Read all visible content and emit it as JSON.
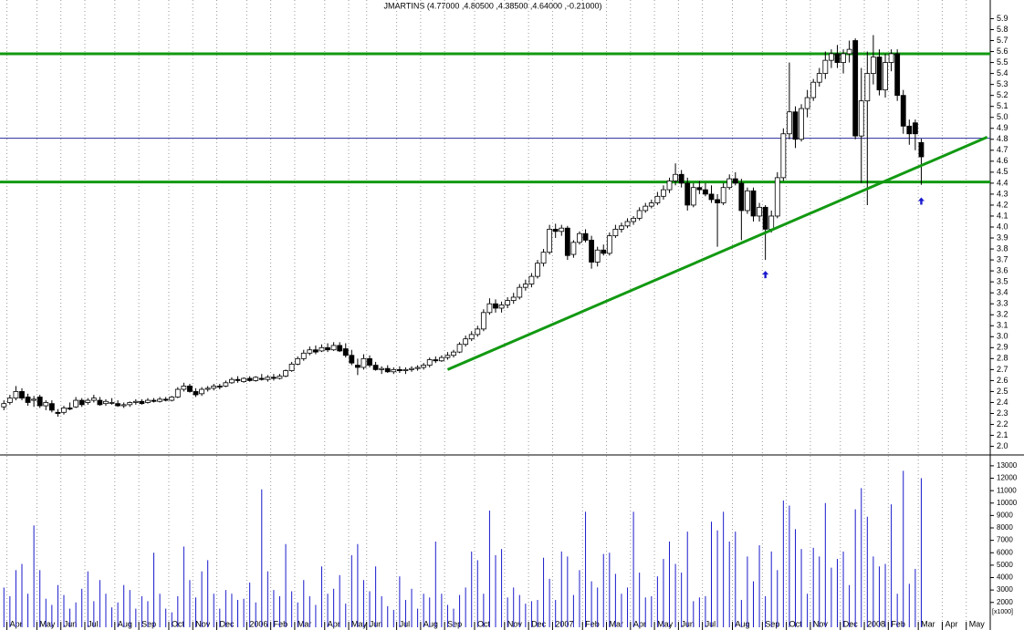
{
  "chart_data": {
    "type": "candlestick",
    "title": "JMARTINS (4.77000 ,4.80500 ,4.38500 ,4.64000 ,-0.21000)",
    "categories": [
      null,
      "Apr",
      null,
      null,
      null,
      null,
      "May",
      null,
      null,
      null,
      "Jun",
      null,
      null,
      null,
      "Jul",
      null,
      null,
      null,
      null,
      "Aug",
      null,
      null,
      null,
      "Sep",
      null,
      null,
      null,
      null,
      "Oct",
      null,
      null,
      null,
      "Nov",
      null,
      null,
      null,
      "Dec",
      null,
      null,
      null,
      null,
      "2006",
      null,
      null,
      null,
      "Feb",
      null,
      null,
      null,
      "Mar",
      null,
      null,
      null,
      null,
      "Apr",
      null,
      null,
      null,
      "May",
      null,
      null,
      "Jun",
      null,
      null,
      null,
      null,
      "Jul",
      null,
      null,
      null,
      "Aug",
      null,
      null,
      null,
      "Sep",
      null,
      null,
      null,
      null,
      "Oct",
      null,
      null,
      null,
      null,
      "Nov",
      null,
      null,
      null,
      "Dec",
      null,
      null,
      null,
      "2007",
      null,
      null,
      null,
      null,
      "Feb",
      null,
      null,
      null,
      "Mar",
      null,
      null,
      null,
      "Apr",
      null,
      null,
      null,
      "May",
      null,
      null,
      null,
      "Jun",
      null,
      null,
      null,
      "Jul",
      null,
      null,
      null,
      null,
      "Aug",
      null,
      null,
      null,
      null,
      "Sep",
      null,
      null,
      null,
      "Oct",
      null,
      null,
      null,
      "Nov",
      null,
      null,
      null,
      null,
      "Dec",
      null,
      null,
      null,
      "2008",
      null,
      null,
      null,
      "Feb",
      null,
      null,
      null,
      null,
      "Mar",
      null,
      null,
      null,
      "Apr",
      null,
      null,
      null,
      "May",
      null,
      null,
      null
    ],
    "ohlc": [
      [
        2.36,
        2.42,
        2.33,
        2.39
      ],
      [
        2.4,
        2.47,
        2.38,
        2.44
      ],
      [
        2.44,
        2.55,
        2.42,
        2.5
      ],
      [
        2.5,
        2.53,
        2.42,
        2.44
      ],
      [
        2.45,
        2.48,
        2.37,
        2.4
      ],
      [
        2.42,
        2.46,
        2.36,
        2.43
      ],
      [
        2.45,
        2.47,
        2.35,
        2.37
      ],
      [
        2.37,
        2.42,
        2.33,
        2.4
      ],
      [
        2.39,
        2.42,
        2.31,
        2.33
      ],
      [
        2.31,
        2.34,
        2.27,
        2.3
      ],
      [
        2.31,
        2.37,
        2.29,
        2.35
      ],
      [
        2.35,
        2.4,
        2.33,
        2.34
      ],
      [
        2.36,
        2.45,
        2.35,
        2.42
      ],
      [
        2.42,
        2.44,
        2.36,
        2.38
      ],
      [
        2.4,
        2.44,
        2.38,
        2.42
      ],
      [
        2.42,
        2.47,
        2.4,
        2.44
      ],
      [
        2.42,
        2.45,
        2.37,
        2.38
      ],
      [
        2.39,
        2.43,
        2.37,
        2.41
      ],
      [
        2.4,
        2.44,
        2.38,
        2.4
      ],
      [
        2.39,
        2.42,
        2.36,
        2.37
      ],
      [
        2.37,
        2.4,
        2.35,
        2.38
      ],
      [
        2.38,
        2.41,
        2.36,
        2.4
      ],
      [
        2.4,
        2.43,
        2.38,
        2.41
      ],
      [
        2.41,
        2.43,
        2.38,
        2.39
      ],
      [
        2.4,
        2.44,
        2.39,
        2.42
      ],
      [
        2.42,
        2.44,
        2.4,
        2.41
      ],
      [
        2.41,
        2.45,
        2.4,
        2.43
      ],
      [
        2.43,
        2.45,
        2.41,
        2.42
      ],
      [
        2.42,
        2.46,
        2.41,
        2.45
      ],
      [
        2.45,
        2.54,
        2.44,
        2.52
      ],
      [
        2.52,
        2.58,
        2.5,
        2.55
      ],
      [
        2.55,
        2.57,
        2.49,
        2.5
      ],
      [
        2.5,
        2.53,
        2.45,
        2.47
      ],
      [
        2.48,
        2.54,
        2.46,
        2.52
      ],
      [
        2.52,
        2.55,
        2.5,
        2.53
      ],
      [
        2.53,
        2.57,
        2.51,
        2.55
      ],
      [
        2.55,
        2.57,
        2.52,
        2.54
      ],
      [
        2.55,
        2.6,
        2.54,
        2.58
      ],
      [
        2.58,
        2.63,
        2.57,
        2.61
      ],
      [
        2.61,
        2.64,
        2.58,
        2.6
      ],
      [
        2.59,
        2.63,
        2.58,
        2.62
      ],
      [
        2.62,
        2.64,
        2.59,
        2.6
      ],
      [
        2.6,
        2.64,
        2.59,
        2.63
      ],
      [
        2.62,
        2.66,
        2.6,
        2.61
      ],
      [
        2.61,
        2.65,
        2.59,
        2.63
      ],
      [
        2.63,
        2.66,
        2.6,
        2.62
      ],
      [
        2.62,
        2.66,
        2.61,
        2.64
      ],
      [
        2.64,
        2.7,
        2.63,
        2.69
      ],
      [
        2.69,
        2.77,
        2.68,
        2.75
      ],
      [
        2.75,
        2.82,
        2.74,
        2.8
      ],
      [
        2.8,
        2.88,
        2.78,
        2.85
      ],
      [
        2.85,
        2.91,
        2.83,
        2.88
      ],
      [
        2.88,
        2.92,
        2.84,
        2.86
      ],
      [
        2.87,
        2.93,
        2.86,
        2.9
      ],
      [
        2.9,
        2.94,
        2.86,
        2.88
      ],
      [
        2.88,
        2.95,
        2.87,
        2.92
      ],
      [
        2.92,
        2.95,
        2.86,
        2.87
      ],
      [
        2.89,
        2.94,
        2.81,
        2.83
      ],
      [
        2.83,
        2.88,
        2.74,
        2.76
      ],
      [
        2.74,
        2.8,
        2.65,
        2.72
      ],
      [
        2.72,
        2.84,
        2.7,
        2.8
      ],
      [
        2.8,
        2.83,
        2.72,
        2.74
      ],
      [
        2.74,
        2.77,
        2.69,
        2.7
      ],
      [
        2.7,
        2.73,
        2.66,
        2.71
      ],
      [
        2.71,
        2.74,
        2.67,
        2.68
      ],
      [
        2.68,
        2.72,
        2.66,
        2.7
      ],
      [
        2.7,
        2.73,
        2.67,
        2.69
      ],
      [
        2.69,
        2.72,
        2.66,
        2.7
      ],
      [
        2.7,
        2.73,
        2.68,
        2.71
      ],
      [
        2.71,
        2.74,
        2.69,
        2.72
      ],
      [
        2.72,
        2.76,
        2.7,
        2.74
      ],
      [
        2.74,
        2.81,
        2.72,
        2.79
      ],
      [
        2.79,
        2.82,
        2.76,
        2.78
      ],
      [
        2.78,
        2.83,
        2.77,
        2.81
      ],
      [
        2.81,
        2.86,
        2.79,
        2.83
      ],
      [
        2.83,
        2.88,
        2.81,
        2.86
      ],
      [
        2.86,
        2.95,
        2.85,
        2.93
      ],
      [
        2.93,
        3.01,
        2.91,
        2.98
      ],
      [
        2.98,
        3.05,
        2.96,
        3.02
      ],
      [
        3.02,
        3.1,
        3.0,
        3.07
      ],
      [
        3.07,
        3.25,
        3.05,
        3.22
      ],
      [
        3.22,
        3.35,
        3.2,
        3.3
      ],
      [
        3.3,
        3.34,
        3.22,
        3.26
      ],
      [
        3.26,
        3.32,
        3.22,
        3.29
      ],
      [
        3.29,
        3.36,
        3.26,
        3.33
      ],
      [
        3.33,
        3.4,
        3.3,
        3.36
      ],
      [
        3.36,
        3.48,
        3.34,
        3.45
      ],
      [
        3.45,
        3.52,
        3.42,
        3.48
      ],
      [
        3.48,
        3.58,
        3.45,
        3.55
      ],
      [
        3.55,
        3.7,
        3.53,
        3.67
      ],
      [
        3.67,
        3.8,
        3.64,
        3.77
      ],
      [
        3.77,
        4.02,
        3.75,
        3.98
      ],
      [
        3.98,
        4.03,
        3.9,
        3.96
      ],
      [
        3.96,
        4.02,
        3.92,
        3.99
      ],
      [
        3.99,
        4.01,
        3.7,
        3.74
      ],
      [
        3.75,
        3.88,
        3.72,
        3.86
      ],
      [
        3.86,
        3.96,
        3.84,
        3.94
      ],
      [
        3.94,
        3.98,
        3.86,
        3.88
      ],
      [
        3.88,
        3.92,
        3.62,
        3.68
      ],
      [
        3.68,
        3.82,
        3.64,
        3.79
      ],
      [
        3.79,
        3.84,
        3.74,
        3.76
      ],
      [
        3.76,
        3.95,
        3.74,
        3.92
      ],
      [
        3.92,
        4.02,
        3.9,
        3.98
      ],
      [
        3.98,
        4.04,
        3.95,
        4.01
      ],
      [
        4.01,
        4.08,
        3.99,
        4.05
      ],
      [
        4.05,
        4.1,
        4.02,
        4.08
      ],
      [
        4.08,
        4.18,
        4.06,
        4.15
      ],
      [
        4.15,
        4.22,
        4.13,
        4.19
      ],
      [
        4.19,
        4.25,
        4.17,
        4.22
      ],
      [
        4.22,
        4.32,
        4.2,
        4.28
      ],
      [
        4.28,
        4.38,
        4.25,
        4.34
      ],
      [
        4.34,
        4.45,
        4.31,
        4.42
      ],
      [
        4.42,
        4.58,
        4.38,
        4.48
      ],
      [
        4.48,
        4.52,
        4.36,
        4.4
      ],
      [
        4.4,
        4.45,
        4.15,
        4.2
      ],
      [
        4.2,
        4.4,
        4.18,
        4.36
      ],
      [
        4.36,
        4.42,
        4.3,
        4.34
      ],
      [
        4.34,
        4.4,
        4.28,
        4.3
      ],
      [
        4.3,
        4.38,
        4.22,
        4.25
      ],
      [
        4.25,
        4.3,
        3.82,
        4.22
      ],
      [
        4.22,
        4.4,
        4.2,
        4.36
      ],
      [
        4.36,
        4.48,
        4.34,
        4.44
      ],
      [
        4.44,
        4.5,
        4.38,
        4.4
      ],
      [
        4.4,
        4.44,
        3.88,
        4.15
      ],
      [
        4.15,
        4.36,
        4.12,
        4.33
      ],
      [
        4.33,
        4.36,
        4.05,
        4.1
      ],
      [
        4.1,
        4.22,
        4.05,
        4.18
      ],
      [
        4.18,
        4.2,
        3.7,
        3.98
      ],
      [
        3.98,
        4.15,
        3.95,
        4.1
      ],
      [
        4.1,
        4.5,
        4.08,
        4.45
      ],
      [
        4.45,
        4.9,
        4.42,
        4.85
      ],
      [
        4.85,
        5.5,
        4.8,
        5.05
      ],
      [
        5.05,
        5.1,
        4.72,
        4.8
      ],
      [
        4.8,
        5.12,
        4.78,
        5.08
      ],
      [
        5.08,
        5.25,
        5.0,
        5.18
      ],
      [
        5.18,
        5.35,
        5.15,
        5.32
      ],
      [
        5.32,
        5.45,
        5.28,
        5.4
      ],
      [
        5.4,
        5.6,
        5.35,
        5.52
      ],
      [
        5.52,
        5.62,
        5.45,
        5.58
      ],
      [
        5.58,
        5.66,
        5.45,
        5.5
      ],
      [
        5.5,
        5.62,
        5.4,
        5.58
      ],
      [
        5.58,
        5.7,
        5.5,
        5.62
      ],
      [
        5.7,
        5.72,
        4.8,
        4.83
      ],
      [
        4.83,
        5.45,
        4.4,
        5.15
      ],
      [
        5.15,
        5.6,
        4.2,
        5.4
      ],
      [
        5.4,
        5.75,
        5.3,
        5.55
      ],
      [
        5.55,
        5.62,
        5.2,
        5.25
      ],
      [
        5.25,
        5.58,
        5.18,
        5.5
      ],
      [
        5.5,
        5.62,
        5.42,
        5.58
      ],
      [
        5.58,
        5.62,
        5.15,
        5.2
      ],
      [
        5.2,
        5.25,
        4.85,
        4.92
      ],
      [
        4.92,
        4.98,
        4.75,
        4.85
      ],
      [
        4.95,
        4.98,
        4.7,
        4.85
      ],
      [
        4.77,
        4.805,
        4.385,
        4.64
      ],
      null,
      null,
      null,
      null,
      null,
      null,
      null,
      null,
      null,
      null,
      null
    ],
    "up_color": "#ffffff",
    "down_color": "#000000",
    "ylim": [
      1.93,
      6.07
    ],
    "yticks": [
      {
        "value": 2.0,
        "label": "2.0"
      },
      2.1,
      2.2,
      2.3,
      2.4,
      2.5,
      2.6,
      2.7,
      2.8,
      2.9,
      {
        "value": 3.0,
        "label": "3.0"
      },
      3.1,
      3.2,
      3.3,
      3.4,
      3.5,
      3.6,
      3.7,
      3.8,
      3.9,
      {
        "value": 4.0,
        "label": "4.0"
      },
      4.1,
      4.2,
      4.3,
      4.4,
      4.5,
      4.6,
      4.7,
      4.8,
      4.9,
      {
        "value": 5.0,
        "label": "5.0"
      },
      5.1,
      5.2,
      5.3,
      5.4,
      5.5,
      5.6,
      5.7,
      5.8,
      5.9
    ],
    "grid": true,
    "hlines": [
      {
        "value": 5.58,
        "color": "#129912"
      },
      {
        "value": 4.81,
        "color": "#2a2a9a"
      },
      {
        "value": 4.41,
        "color": "#129912"
      }
    ],
    "trendline": {
      "x": [
        74,
        164
      ],
      "y": [
        2.7,
        4.82
      ],
      "color": "#129912"
    },
    "arrows": [
      {
        "x": 127,
        "y": 3.6,
        "color": "#1a1ad0"
      },
      {
        "x": 153,
        "y": 4.27,
        "color": "#1a1ad0"
      }
    ],
    "volume": {
      "color": "#1a1acc",
      "values": [
        3200,
        2500,
        4600,
        5100,
        2700,
        8200,
        4600,
        2300,
        1800,
        3400,
        2600,
        1500,
        2000,
        3100,
        4500,
        2100,
        3800,
        2700,
        1600,
        2000,
        3400,
        3000,
        1500,
        2500,
        2100,
        6000,
        2700,
        1500,
        1200,
        2500,
        6500,
        3800,
        2400,
        4500,
        5400,
        2700,
        1500,
        3000,
        2700,
        2200,
        2300,
        3600,
        2000,
        11100,
        4500,
        3000,
        2500,
        6700,
        2900,
        2000,
        3800,
        2500,
        1800,
        4900,
        2700,
        3100,
        4200,
        1900,
        5800,
        6700,
        3800,
        2900,
        4900,
        2500,
        1700,
        1400,
        4100,
        2200,
        3100,
        1500,
        2700,
        2400,
        6900,
        2700,
        1800,
        1500,
        2600,
        3200,
        6100,
        5400,
        2700,
        9400,
        5800,
        6300,
        2400,
        3200,
        2600,
        1900,
        2100,
        2200,
        5600,
        3900,
        2200,
        6100,
        5700,
        2600,
        4600,
        9300,
        3700,
        3200,
        5900,
        6000,
        4300,
        2700,
        3200,
        9300,
        4400,
        2400,
        2500,
        4100,
        5500,
        6900,
        5100,
        4400,
        7700,
        2100,
        2400,
        2500,
        8500,
        7800,
        9300,
        6900,
        7700,
        2200,
        5700,
        3700,
        6600,
        2500,
        6100,
        4600,
        10200,
        9800,
        7900,
        6300,
        2700,
        6400,
        5700,
        10000,
        4800,
        5500,
        6100,
        3400,
        9500,
        11200,
        8900,
        5700,
        4900,
        5100,
        9900,
        2700,
        12600,
        3500,
        4700,
        12000,
        null,
        null,
        null,
        null,
        null,
        null,
        null,
        null,
        null,
        null,
        null
      ],
      "ylim": [
        0,
        13800
      ],
      "yticks": [
        2000,
        3000,
        4000,
        5000,
        6000,
        7000,
        8000,
        9000,
        10000,
        11000,
        12000,
        13000
      ],
      "unit_label": "[x1000]"
    }
  }
}
